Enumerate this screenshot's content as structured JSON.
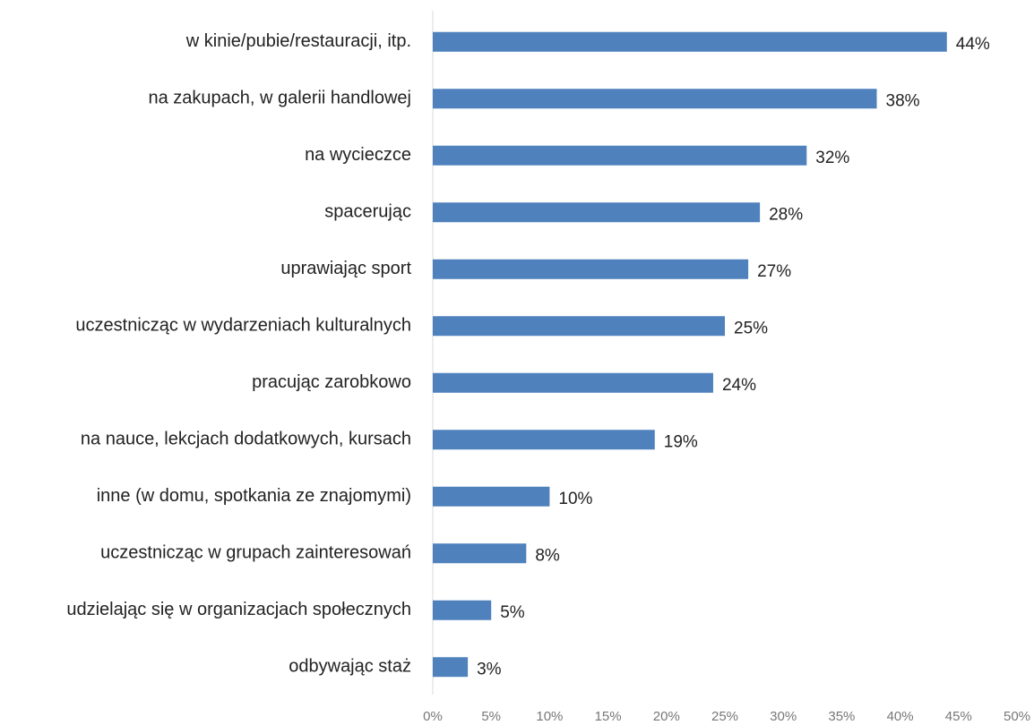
{
  "chart_data": {
    "type": "bar",
    "orientation": "horizontal",
    "categories": [
      "w kinie/pubie/restauracji, itp.",
      "na zakupach, w galerii handlowej",
      "na wycieczce",
      "spacerując",
      "uprawiając sport",
      "uczestnicząc w wydarzeniach kulturalnych",
      "pracując zarobkowo",
      "na nauce, lekcjach dodatkowych, kursach",
      "inne (w domu, spotkania ze znajomymi)",
      "uczestnicząc w grupach zainteresowań",
      "udzielając się w organizacjach społecznych",
      "odbywając staż"
    ],
    "values": [
      44,
      38,
      32,
      28,
      27,
      25,
      24,
      19,
      10,
      8,
      5,
      3
    ],
    "value_labels": [
      "44%",
      "38%",
      "32%",
      "28%",
      "27%",
      "25%",
      "24%",
      "19%",
      "10%",
      "8%",
      "5%",
      "3%"
    ],
    "color": "#4f81bd",
    "xlim": [
      0,
      50
    ],
    "xticks": [
      {
        "value": 0,
        "label": "0%"
      },
      {
        "value": 5,
        "label": "5%"
      },
      {
        "value": 10,
        "label": "10%"
      },
      {
        "value": 15,
        "label": "15%"
      },
      {
        "value": 20,
        "label": "20%"
      },
      {
        "value": 25,
        "label": "25%"
      },
      {
        "value": 30,
        "label": "30%"
      },
      {
        "value": 35,
        "label": "35%"
      },
      {
        "value": 40,
        "label": "40%"
      },
      {
        "value": 45,
        "label": "45%"
      },
      {
        "value": 50,
        "label": "50%"
      }
    ],
    "grid": false
  }
}
